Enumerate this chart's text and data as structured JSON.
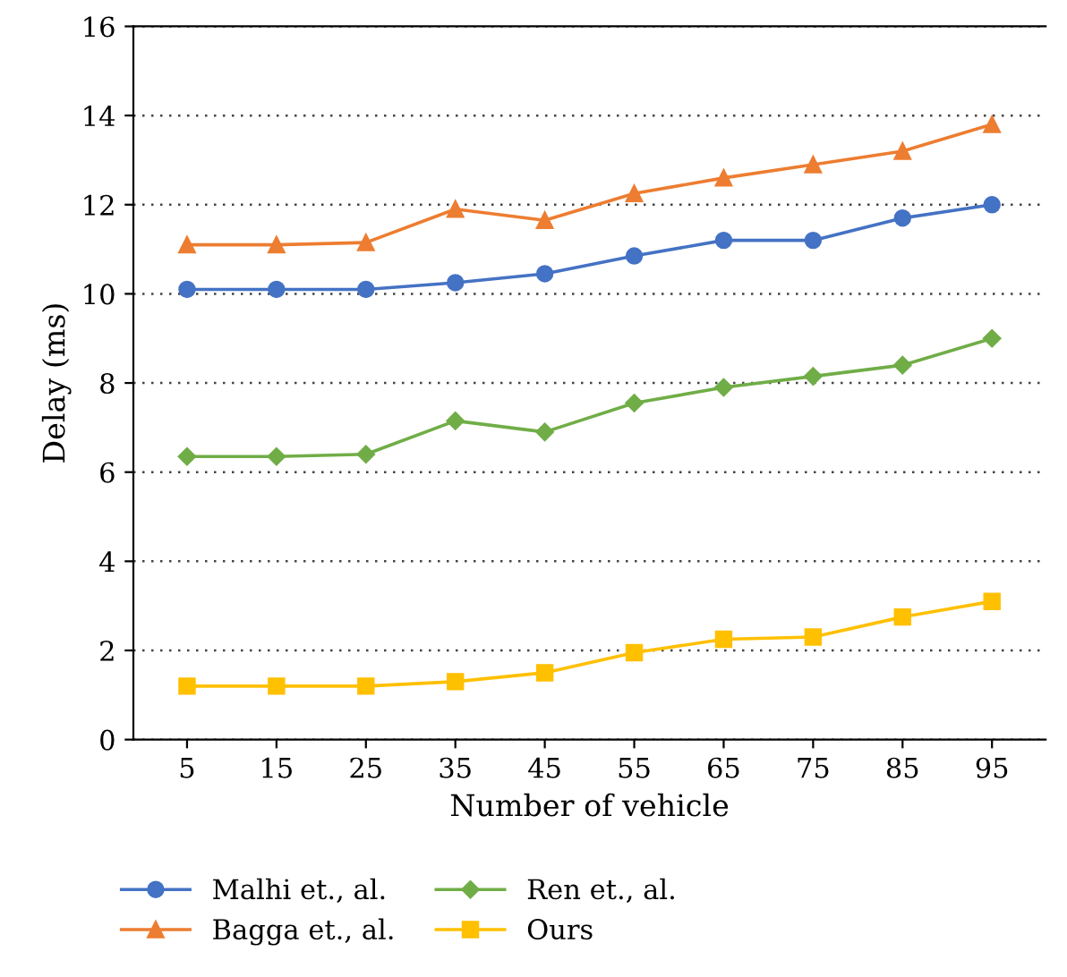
{
  "chart_data": {
    "type": "line",
    "xlabel": "Number of vehicle",
    "ylabel": "Delay (ms)",
    "categories": [
      "5",
      "15",
      "25",
      "35",
      "45",
      "55",
      "65",
      "75",
      "85",
      "95"
    ],
    "series": [
      {
        "name": "Malhi et., al.",
        "color": "#4472c4",
        "marker": "circle",
        "values": [
          10.1,
          10.1,
          10.1,
          10.25,
          10.45,
          10.85,
          11.2,
          11.2,
          11.7,
          12.0
        ]
      },
      {
        "name": "Bagga et., al.",
        "color": "#ed7d31",
        "marker": "triangle",
        "values": [
          11.1,
          11.1,
          11.15,
          11.9,
          11.65,
          12.25,
          12.6,
          12.9,
          13.2,
          13.8
        ]
      },
      {
        "name": "Ren et., al.",
        "color": "#70ad47",
        "marker": "diamond",
        "values": [
          6.35,
          6.35,
          6.4,
          7.15,
          6.9,
          7.55,
          7.9,
          8.15,
          8.4,
          9.0
        ]
      },
      {
        "name": "Ours",
        "color": "#ffc000",
        "marker": "square",
        "values": [
          1.2,
          1.2,
          1.2,
          1.3,
          1.5,
          1.95,
          2.25,
          2.3,
          2.75,
          3.1
        ]
      }
    ],
    "ylim": [
      0,
      16
    ],
    "yticks": [
      0,
      2,
      4,
      6,
      8,
      10,
      12,
      14,
      16
    ],
    "grid": "y",
    "legend": "bottom",
    "line_style": "solid"
  }
}
